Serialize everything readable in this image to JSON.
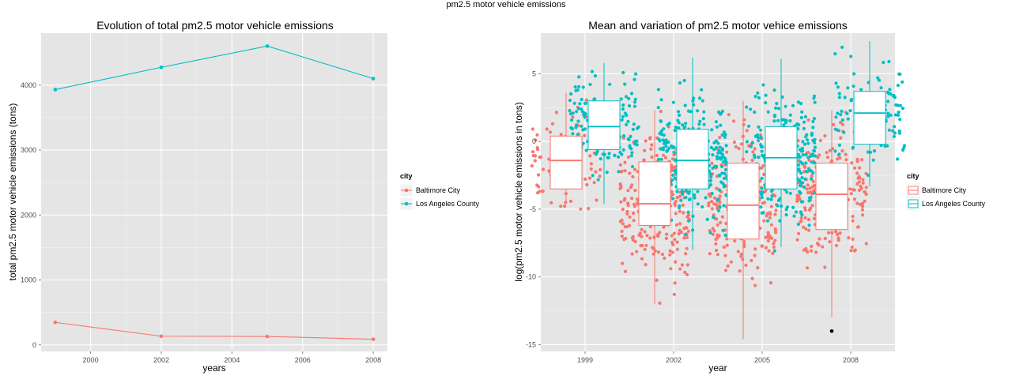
{
  "page_title": "pm2.5 motor vehicle emissions",
  "colors": {
    "baltimore": "#F8766D",
    "la": "#00BFC4",
    "panel_bg": "#E5E5E5",
    "grid": "#FFFFFF",
    "outlier": "#000000"
  },
  "chart_data": [
    {
      "type": "line",
      "title": "Evolution of total pm2.5 motor vehicle emissions",
      "xlabel": "years",
      "ylabel": "total pm2.5 motor vehicle emissions (tons)",
      "xlim": [
        1998.6,
        2008.4
      ],
      "ylim": [
        -100,
        4800
      ],
      "x_ticks": [
        2000,
        2002,
        2004,
        2006,
        2008
      ],
      "y_ticks": [
        0,
        1000,
        2000,
        3000,
        4000
      ],
      "x_tick_labels": [
        "2000",
        "2002",
        "2004",
        "2006",
        "2008"
      ],
      "y_tick_labels": [
        "0",
        "1000",
        "2000",
        "3000",
        "4000"
      ],
      "grid": true,
      "legend": {
        "title": "city",
        "position": "right",
        "entries": [
          "Baltimore City",
          "Los Angeles County"
        ]
      },
      "x": [
        1999,
        2002,
        2005,
        2008
      ],
      "series": [
        {
          "name": "Baltimore City",
          "values": [
            347,
            134,
            130,
            88
          ]
        },
        {
          "name": "Los Angeles County",
          "values": [
            3931,
            4274,
            4601,
            4101
          ]
        }
      ]
    },
    {
      "type": "box",
      "title": "Mean and variation of pm2.5 motor vehice emissions",
      "xlabel": "year",
      "ylabel": "log(pm2.5 motor vehicle emissions in tons)",
      "categories": [
        "1999",
        "2002",
        "2005",
        "2008"
      ],
      "ylim": [
        -15.5,
        8.0
      ],
      "y_ticks": [
        -15,
        -10,
        -5,
        0,
        5
      ],
      "y_tick_labels": [
        "-15",
        "-10",
        "-5",
        "0",
        "5"
      ],
      "grid": true,
      "jittered_points": true,
      "legend": {
        "title": "city",
        "position": "right",
        "entries": [
          "Baltimore City",
          "Los Angeles County"
        ]
      },
      "series": [
        {
          "name": "Baltimore City",
          "boxes": [
            {
              "year": "1999",
              "min": -4.6,
              "q1": -3.5,
              "median": -1.4,
              "q3": 0.4,
              "max": 3.6,
              "outliers": []
            },
            {
              "year": "2002",
              "min": -12.0,
              "q1": -6.2,
              "median": -4.6,
              "q3": -1.5,
              "max": 2.3,
              "outliers": []
            },
            {
              "year": "2005",
              "min": -14.6,
              "q1": -7.2,
              "median": -4.7,
              "q3": -1.6,
              "max": 3.0,
              "outliers": []
            },
            {
              "year": "2008",
              "min": -13.0,
              "q1": -6.5,
              "median": -3.9,
              "q3": -1.6,
              "max": 2.3,
              "outliers": [
                -14.0
              ]
            }
          ]
        },
        {
          "name": "Los Angeles County",
          "boxes": [
            {
              "year": "1999",
              "min": -4.6,
              "q1": -0.6,
              "median": 1.1,
              "q3": 3.0,
              "max": 5.8,
              "outliers": []
            },
            {
              "year": "2002",
              "min": -8.0,
              "q1": -3.5,
              "median": -1.4,
              "q3": 0.9,
              "max": 6.2,
              "outliers": []
            },
            {
              "year": "2005",
              "min": -7.8,
              "q1": -3.5,
              "median": -1.2,
              "q3": 1.1,
              "max": 6.1,
              "outliers": []
            },
            {
              "year": "2008",
              "min": -3.3,
              "q1": -0.2,
              "median": 2.1,
              "q3": 3.7,
              "max": 7.4,
              "outliers": []
            }
          ]
        }
      ]
    }
  ]
}
